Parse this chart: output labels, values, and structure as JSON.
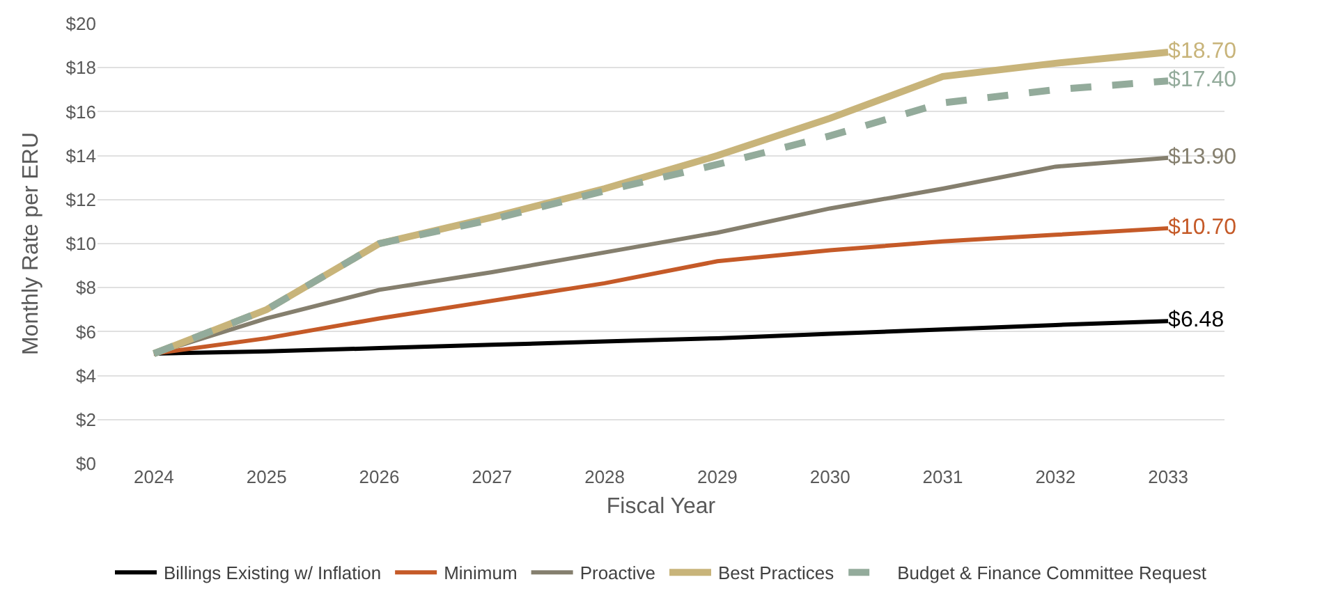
{
  "chart_data": {
    "type": "line",
    "xlabel": "Fiscal Year",
    "ylabel": "Monthly Rate per ERU",
    "categories": [
      "2024",
      "2025",
      "2026",
      "2027",
      "2028",
      "2029",
      "2030",
      "2031",
      "2032",
      "2033"
    ],
    "ylim": [
      0,
      20
    ],
    "yticks": [
      {
        "value": 0,
        "label": "$0"
      },
      {
        "value": 2,
        "label": "$2"
      },
      {
        "value": 4,
        "label": "$4"
      },
      {
        "value": 6,
        "label": "$6"
      },
      {
        "value": 8,
        "label": "$8"
      },
      {
        "value": 10,
        "label": "$10"
      },
      {
        "value": 12,
        "label": "$12"
      },
      {
        "value": 14,
        "label": "$14"
      },
      {
        "value": 16,
        "label": "$16"
      },
      {
        "value": 18,
        "label": "$18"
      },
      {
        "value": 20,
        "label": "$20"
      }
    ],
    "grid": "y",
    "legend": "bottom",
    "marker": "none",
    "series": [
      {
        "name": "Billings Existing w/ Inflation",
        "color": "#000000",
        "values": [
          5.0,
          5.1,
          5.25,
          5.4,
          5.55,
          5.7,
          5.9,
          6.1,
          6.3,
          6.48
        ],
        "value_labels": [
          null,
          null,
          null,
          null,
          null,
          null,
          null,
          null,
          null,
          "$6.48"
        ]
      },
      {
        "name": "Minimum",
        "color": "#c55a28",
        "values": [
          5.0,
          5.7,
          6.6,
          7.4,
          8.2,
          9.2,
          9.7,
          10.1,
          10.4,
          10.7
        ],
        "value_labels": [
          null,
          null,
          null,
          null,
          null,
          null,
          null,
          null,
          null,
          "$10.70"
        ]
      },
      {
        "name": "Proactive",
        "color": "#857f6e",
        "values": [
          5.0,
          6.6,
          7.9,
          8.7,
          9.6,
          10.5,
          11.6,
          12.5,
          13.5,
          13.9
        ],
        "value_labels": [
          null,
          null,
          null,
          null,
          null,
          null,
          null,
          null,
          null,
          "$13.90"
        ]
      },
      {
        "name": "Best Practices",
        "color": "#c8b47a",
        "values": [
          5.0,
          7.0,
          10.0,
          11.2,
          12.5,
          14.0,
          15.7,
          17.6,
          18.2,
          18.7
        ],
        "value_labels": [
          null,
          null,
          null,
          null,
          null,
          null,
          null,
          null,
          null,
          "$18.70"
        ]
      },
      {
        "name": "Budget & Finance Committee Request",
        "color": "#93ab9b",
        "line_style": "dashed",
        "values": [
          5.0,
          7.0,
          10.0,
          11.1,
          12.4,
          13.6,
          14.9,
          16.4,
          17.0,
          17.4
        ],
        "value_labels": [
          null,
          null,
          null,
          null,
          null,
          null,
          null,
          null,
          null,
          "$17.40"
        ]
      }
    ]
  }
}
